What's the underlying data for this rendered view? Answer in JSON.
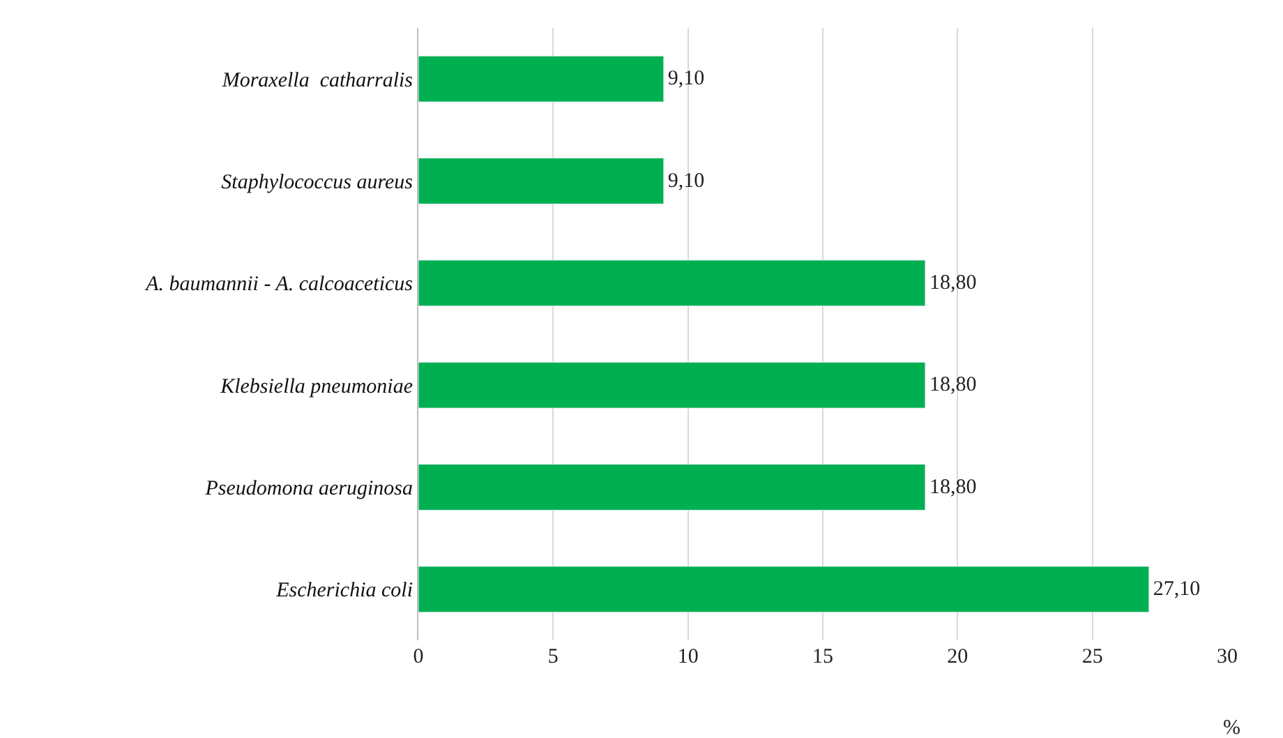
{
  "chart_data": {
    "type": "bar",
    "orientation": "horizontal",
    "categories": [
      "Moraxella  catharralis",
      "Staphylococcus aureus",
      "A. baumannii - A. calcoaceticus",
      "Klebsiella pneumoniae",
      "Pseudomona aeruginosa",
      "Escherichia coli"
    ],
    "values": [
      9.1,
      9.1,
      18.8,
      18.8,
      18.8,
      27.1
    ],
    "value_labels": [
      "9,10",
      "9,10",
      "18,80",
      "18,80",
      "18,80",
      "27,10"
    ],
    "color": "#00b050",
    "xlim": [
      0,
      30
    ],
    "xticks": [
      0,
      5,
      10,
      15,
      20,
      25,
      30
    ],
    "xlabel": "%",
    "grid": "x",
    "legend": false
  }
}
